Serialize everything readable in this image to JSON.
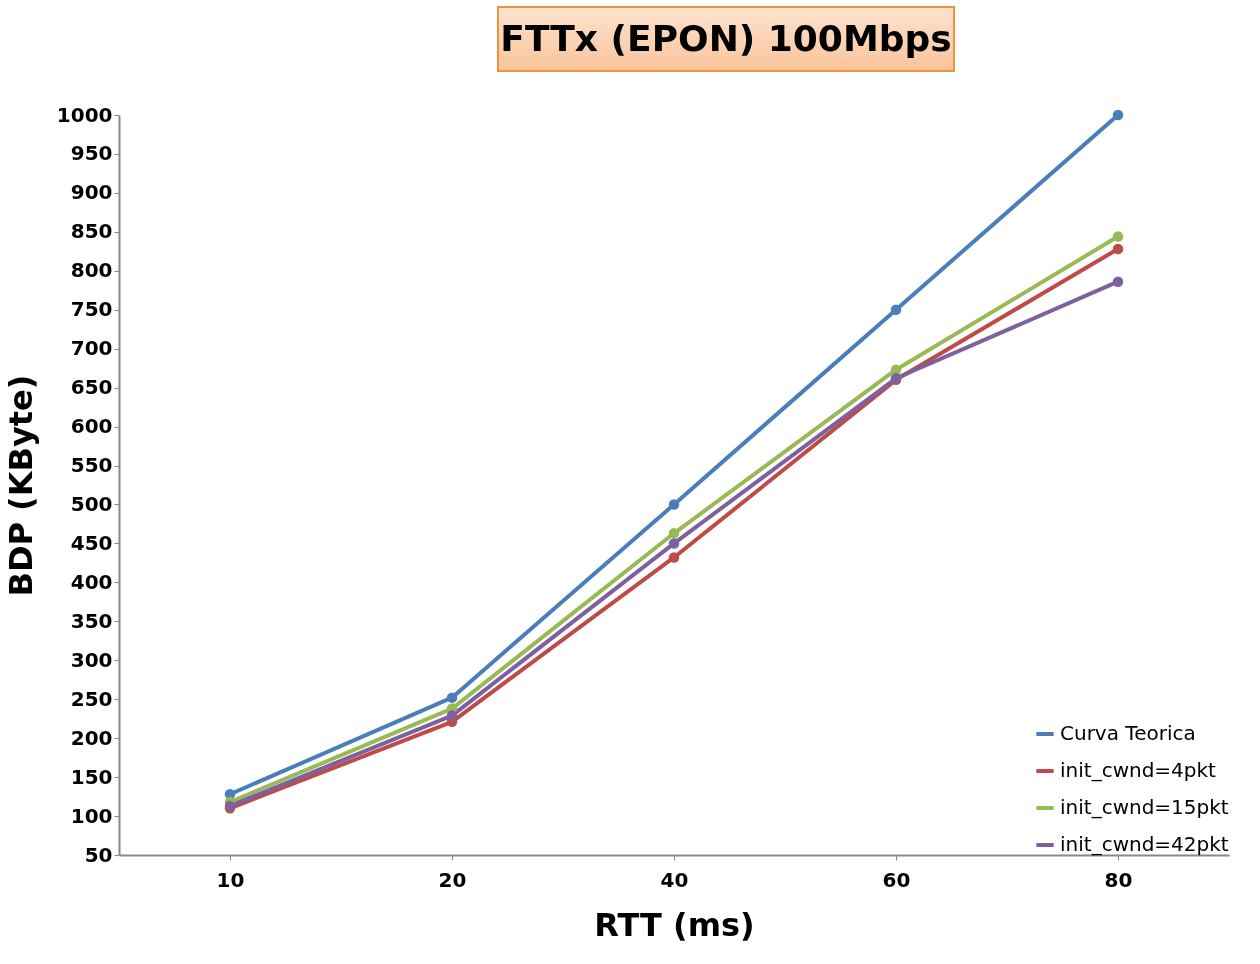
{
  "chart_data": {
    "type": "line",
    "title": "FTTx (EPON) 100Mbps",
    "xlabel": "RTT (ms)",
    "ylabel": "BDP (KByte)",
    "categories": [
      "10",
      "20",
      "40",
      "60",
      "80"
    ],
    "series": [
      {
        "name": "Curva Teorica",
        "color": "#4a7ebb",
        "values": [
          128,
          252,
          500,
          750,
          1000
        ]
      },
      {
        "name": "init_cwnd=4pkt",
        "color": "#be4b48",
        "values": [
          110,
          221,
          432,
          660,
          828
        ]
      },
      {
        "name": "init_cwnd=15pkt",
        "color": "#98b954",
        "values": [
          118,
          238,
          463,
          673,
          844
        ]
      },
      {
        "name": "init_cwnd=42pkt",
        "color": "#7d60a0",
        "values": [
          113,
          229,
          450,
          662,
          786
        ]
      }
    ],
    "ylim": [
      50,
      1000
    ],
    "yticks": [
      50,
      100,
      150,
      200,
      250,
      300,
      350,
      400,
      450,
      500,
      550,
      600,
      650,
      700,
      750,
      800,
      850,
      900,
      950,
      1000
    ],
    "grid": false,
    "legend": "bottom right",
    "marker": "circle",
    "line_style": "solid"
  }
}
